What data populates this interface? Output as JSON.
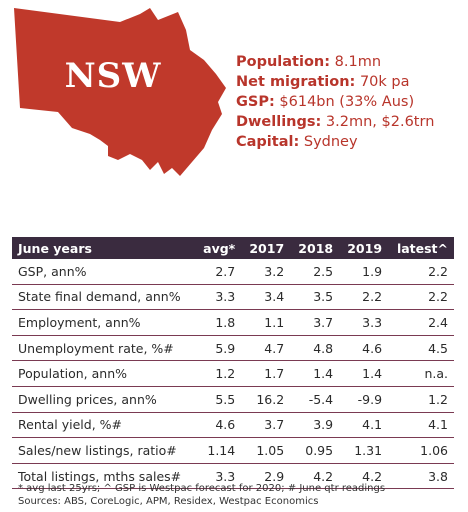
{
  "state": {
    "name": "NSW",
    "color": "#c0392b"
  },
  "facts": [
    {
      "label": "Population:",
      "value": "8.1mn"
    },
    {
      "label": "Net migration:",
      "value": "70k pa"
    },
    {
      "label": "GSP:",
      "value": "$614bn (33% Aus)"
    },
    {
      "label": "Dwellings:",
      "value": "3.2mn, $2.6trn"
    },
    {
      "label": "Capital:",
      "value": "Sydney"
    }
  ],
  "table": {
    "headers": [
      "June years",
      "avg*",
      "2017",
      "2018",
      "2019",
      "latest^"
    ],
    "rows": [
      [
        "GSP, ann%",
        "2.7",
        "3.2",
        "2.5",
        "1.9",
        "2.2"
      ],
      [
        "State final demand, ann%",
        "3.3",
        "3.4",
        "3.5",
        "2.2",
        "2.2"
      ],
      [
        "Employment, ann%",
        "1.8",
        "1.1",
        "3.7",
        "3.3",
        "2.4"
      ],
      [
        "Unemployment rate, %#",
        "5.9",
        "4.7",
        "4.8",
        "4.6",
        "4.5"
      ],
      [
        "Population, ann%",
        "1.2",
        "1.7",
        "1.4",
        "1.4",
        "n.a."
      ],
      [
        "Dwelling prices, ann%",
        "5.5",
        "16.2",
        "-5.4",
        "-9.9",
        "1.2"
      ],
      [
        "Rental yield, %#",
        "4.6",
        "3.7",
        "3.9",
        "4.1",
        "4.1"
      ],
      [
        "Sales/new listings, ratio#",
        "1.14",
        "1.05",
        "0.95",
        "1.31",
        "1.06"
      ],
      [
        "Total listings, mths sales#",
        "3.3",
        "2.9",
        "4.2",
        "4.2",
        "3.8"
      ]
    ]
  },
  "footnotes": {
    "note": "* avg last 25yrs; ^ GSP is Westpac forecast for 2020; # June qtr readings",
    "sources": "Sources: ABS, CoreLogic, APM, Residex, Westpac Economics"
  }
}
